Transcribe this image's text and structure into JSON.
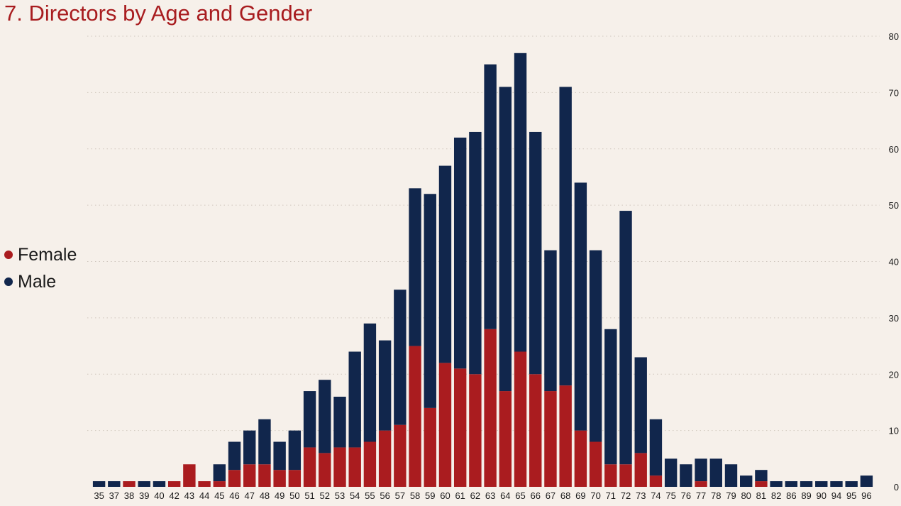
{
  "colors": {
    "female": "#aa1c1f",
    "male": "#11264c",
    "grid": "#cfc6bd"
  },
  "chart_data": {
    "type": "bar",
    "stacked": true,
    "title": "7. Directors by Age and Gender",
    "xlabel": "",
    "ylabel": "",
    "ylim": [
      0,
      80
    ],
    "yticks": [
      "0",
      "10",
      "20",
      "30",
      "40",
      "50",
      "60",
      "70",
      "80"
    ],
    "legend_position": "left",
    "categories": [
      "35",
      "37",
      "38",
      "39",
      "40",
      "42",
      "43",
      "44",
      "45",
      "46",
      "47",
      "48",
      "49",
      "50",
      "51",
      "52",
      "53",
      "54",
      "55",
      "56",
      "57",
      "58",
      "59",
      "60",
      "61",
      "62",
      "63",
      "64",
      "65",
      "66",
      "67",
      "68",
      "69",
      "70",
      "71",
      "72",
      "73",
      "74",
      "75",
      "76",
      "77",
      "78",
      "79",
      "80",
      "81",
      "82",
      "86",
      "89",
      "90",
      "94",
      "95",
      "96"
    ],
    "series": [
      {
        "name": "Female",
        "values": [
          0,
          0,
          1,
          0,
          0,
          1,
          4,
          1,
          1,
          3,
          4,
          4,
          3,
          3,
          7,
          6,
          7,
          7,
          8,
          10,
          11,
          25,
          14,
          22,
          21,
          20,
          28,
          17,
          24,
          20,
          17,
          18,
          10,
          8,
          4,
          4,
          6,
          2,
          0,
          0,
          1,
          0,
          0,
          0,
          1,
          0,
          0,
          0,
          0,
          0,
          0,
          0
        ]
      },
      {
        "name": "Male",
        "values": [
          1,
          1,
          0,
          1,
          1,
          0,
          0,
          0,
          3,
          5,
          6,
          8,
          5,
          7,
          10,
          13,
          9,
          17,
          21,
          16,
          24,
          28,
          38,
          35,
          41,
          43,
          47,
          54,
          53,
          43,
          25,
          53,
          44,
          34,
          24,
          45,
          17,
          10,
          5,
          4,
          4,
          5,
          4,
          2,
          2,
          1,
          1,
          1,
          1,
          1,
          1,
          2
        ]
      }
    ]
  }
}
